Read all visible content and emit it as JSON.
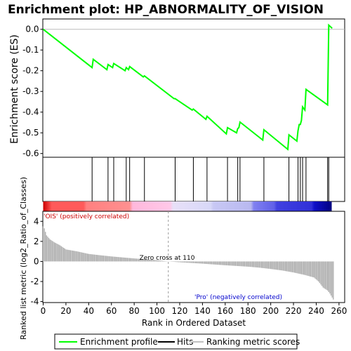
{
  "chart_data": {
    "type": "line",
    "title": "Enrichment plot: HP_ABNORMALITY_OF_VISION",
    "ylabel_top": "Enrichment score (ES)",
    "ylabel_bottom": "Ranked list metric (log2_Ratio_of_Classes)",
    "xlabel": "Rank in Ordered Dataset",
    "xlim": [
      0,
      265
    ],
    "es_ylim": [
      -0.6,
      0.05
    ],
    "metric_ylim": [
      -4,
      5
    ],
    "x_ticks": [
      "0",
      "20",
      "40",
      "60",
      "80",
      "100",
      "120",
      "140",
      "160",
      "180",
      "200",
      "220",
      "240",
      "260"
    ],
    "es_ticks": [
      "0.0",
      "-0.1",
      "-0.2",
      "-0.3",
      "-0.4",
      "-0.5",
      "-0.6"
    ],
    "metric_ticks": [
      "4",
      "2",
      "0",
      "-2",
      "-4"
    ],
    "enrichment_profile": {
      "x": [
        0,
        43,
        44,
        56,
        57,
        61,
        62,
        72,
        73,
        75,
        76,
        88,
        89,
        115,
        116,
        131,
        132,
        143,
        144,
        161,
        162,
        170,
        171,
        172,
        173,
        193,
        194,
        215,
        216,
        223,
        224,
        225,
        226,
        227,
        228,
        230,
        231,
        250,
        251,
        254
      ],
      "y": [
        0.0,
        -0.185,
        -0.145,
        -0.195,
        -0.17,
        -0.185,
        -0.165,
        -0.2,
        -0.185,
        -0.195,
        -0.18,
        -0.23,
        -0.225,
        -0.335,
        -0.335,
        -0.39,
        -0.385,
        -0.435,
        -0.42,
        -0.505,
        -0.475,
        -0.5,
        -0.48,
        -0.475,
        -0.448,
        -0.535,
        -0.485,
        -0.58,
        -0.51,
        -0.54,
        -0.49,
        -0.46,
        -0.46,
        -0.44,
        -0.375,
        -0.39,
        -0.29,
        -0.365,
        0.02,
        0.005
      ]
    },
    "hits": [
      43,
      57,
      62,
      73,
      76,
      89,
      116,
      132,
      144,
      162,
      171,
      173,
      194,
      216,
      224,
      226,
      228,
      231,
      250,
      251
    ],
    "metric": {
      "points": [
        [
          0,
          3.5
        ],
        [
          1,
          3.3
        ],
        [
          3,
          2.6
        ],
        [
          6,
          2.2
        ],
        [
          10,
          1.9
        ],
        [
          15,
          1.6
        ],
        [
          20,
          1.2
        ],
        [
          30,
          1.0
        ],
        [
          40,
          0.75
        ],
        [
          50,
          0.62
        ],
        [
          60,
          0.5
        ],
        [
          70,
          0.4
        ],
        [
          80,
          0.3
        ],
        [
          90,
          0.22
        ],
        [
          100,
          0.12
        ],
        [
          110,
          0.0
        ],
        [
          120,
          -0.08
        ],
        [
          130,
          -0.15
        ],
        [
          140,
          -0.22
        ],
        [
          150,
          -0.3
        ],
        [
          160,
          -0.38
        ],
        [
          170,
          -0.45
        ],
        [
          180,
          -0.52
        ],
        [
          190,
          -0.62
        ],
        [
          200,
          -0.75
        ],
        [
          210,
          -0.9
        ],
        [
          220,
          -1.1
        ],
        [
          230,
          -1.35
        ],
        [
          238,
          -1.6
        ],
        [
          242,
          -2.0
        ],
        [
          246,
          -2.6
        ],
        [
          250,
          -2.9
        ],
        [
          252,
          -3.2
        ],
        [
          254,
          -3.6
        ],
        [
          255,
          -3.8
        ]
      ]
    },
    "zero_cross_x": 110,
    "zero_cross_label": "Zero cross at 110",
    "pos_label": "'OIS' (positively correlated)",
    "neg_label": "'Pro' (negatively correlated)",
    "colors": {
      "profile": "#00ff00",
      "hits": "#000000",
      "metric": "#b0b0b0",
      "pos_text": "#cc0000",
      "neg_text": "#0000cc"
    },
    "legend": [
      "Enrichment profile",
      "Hits",
      "Ranking metric scores"
    ]
  }
}
